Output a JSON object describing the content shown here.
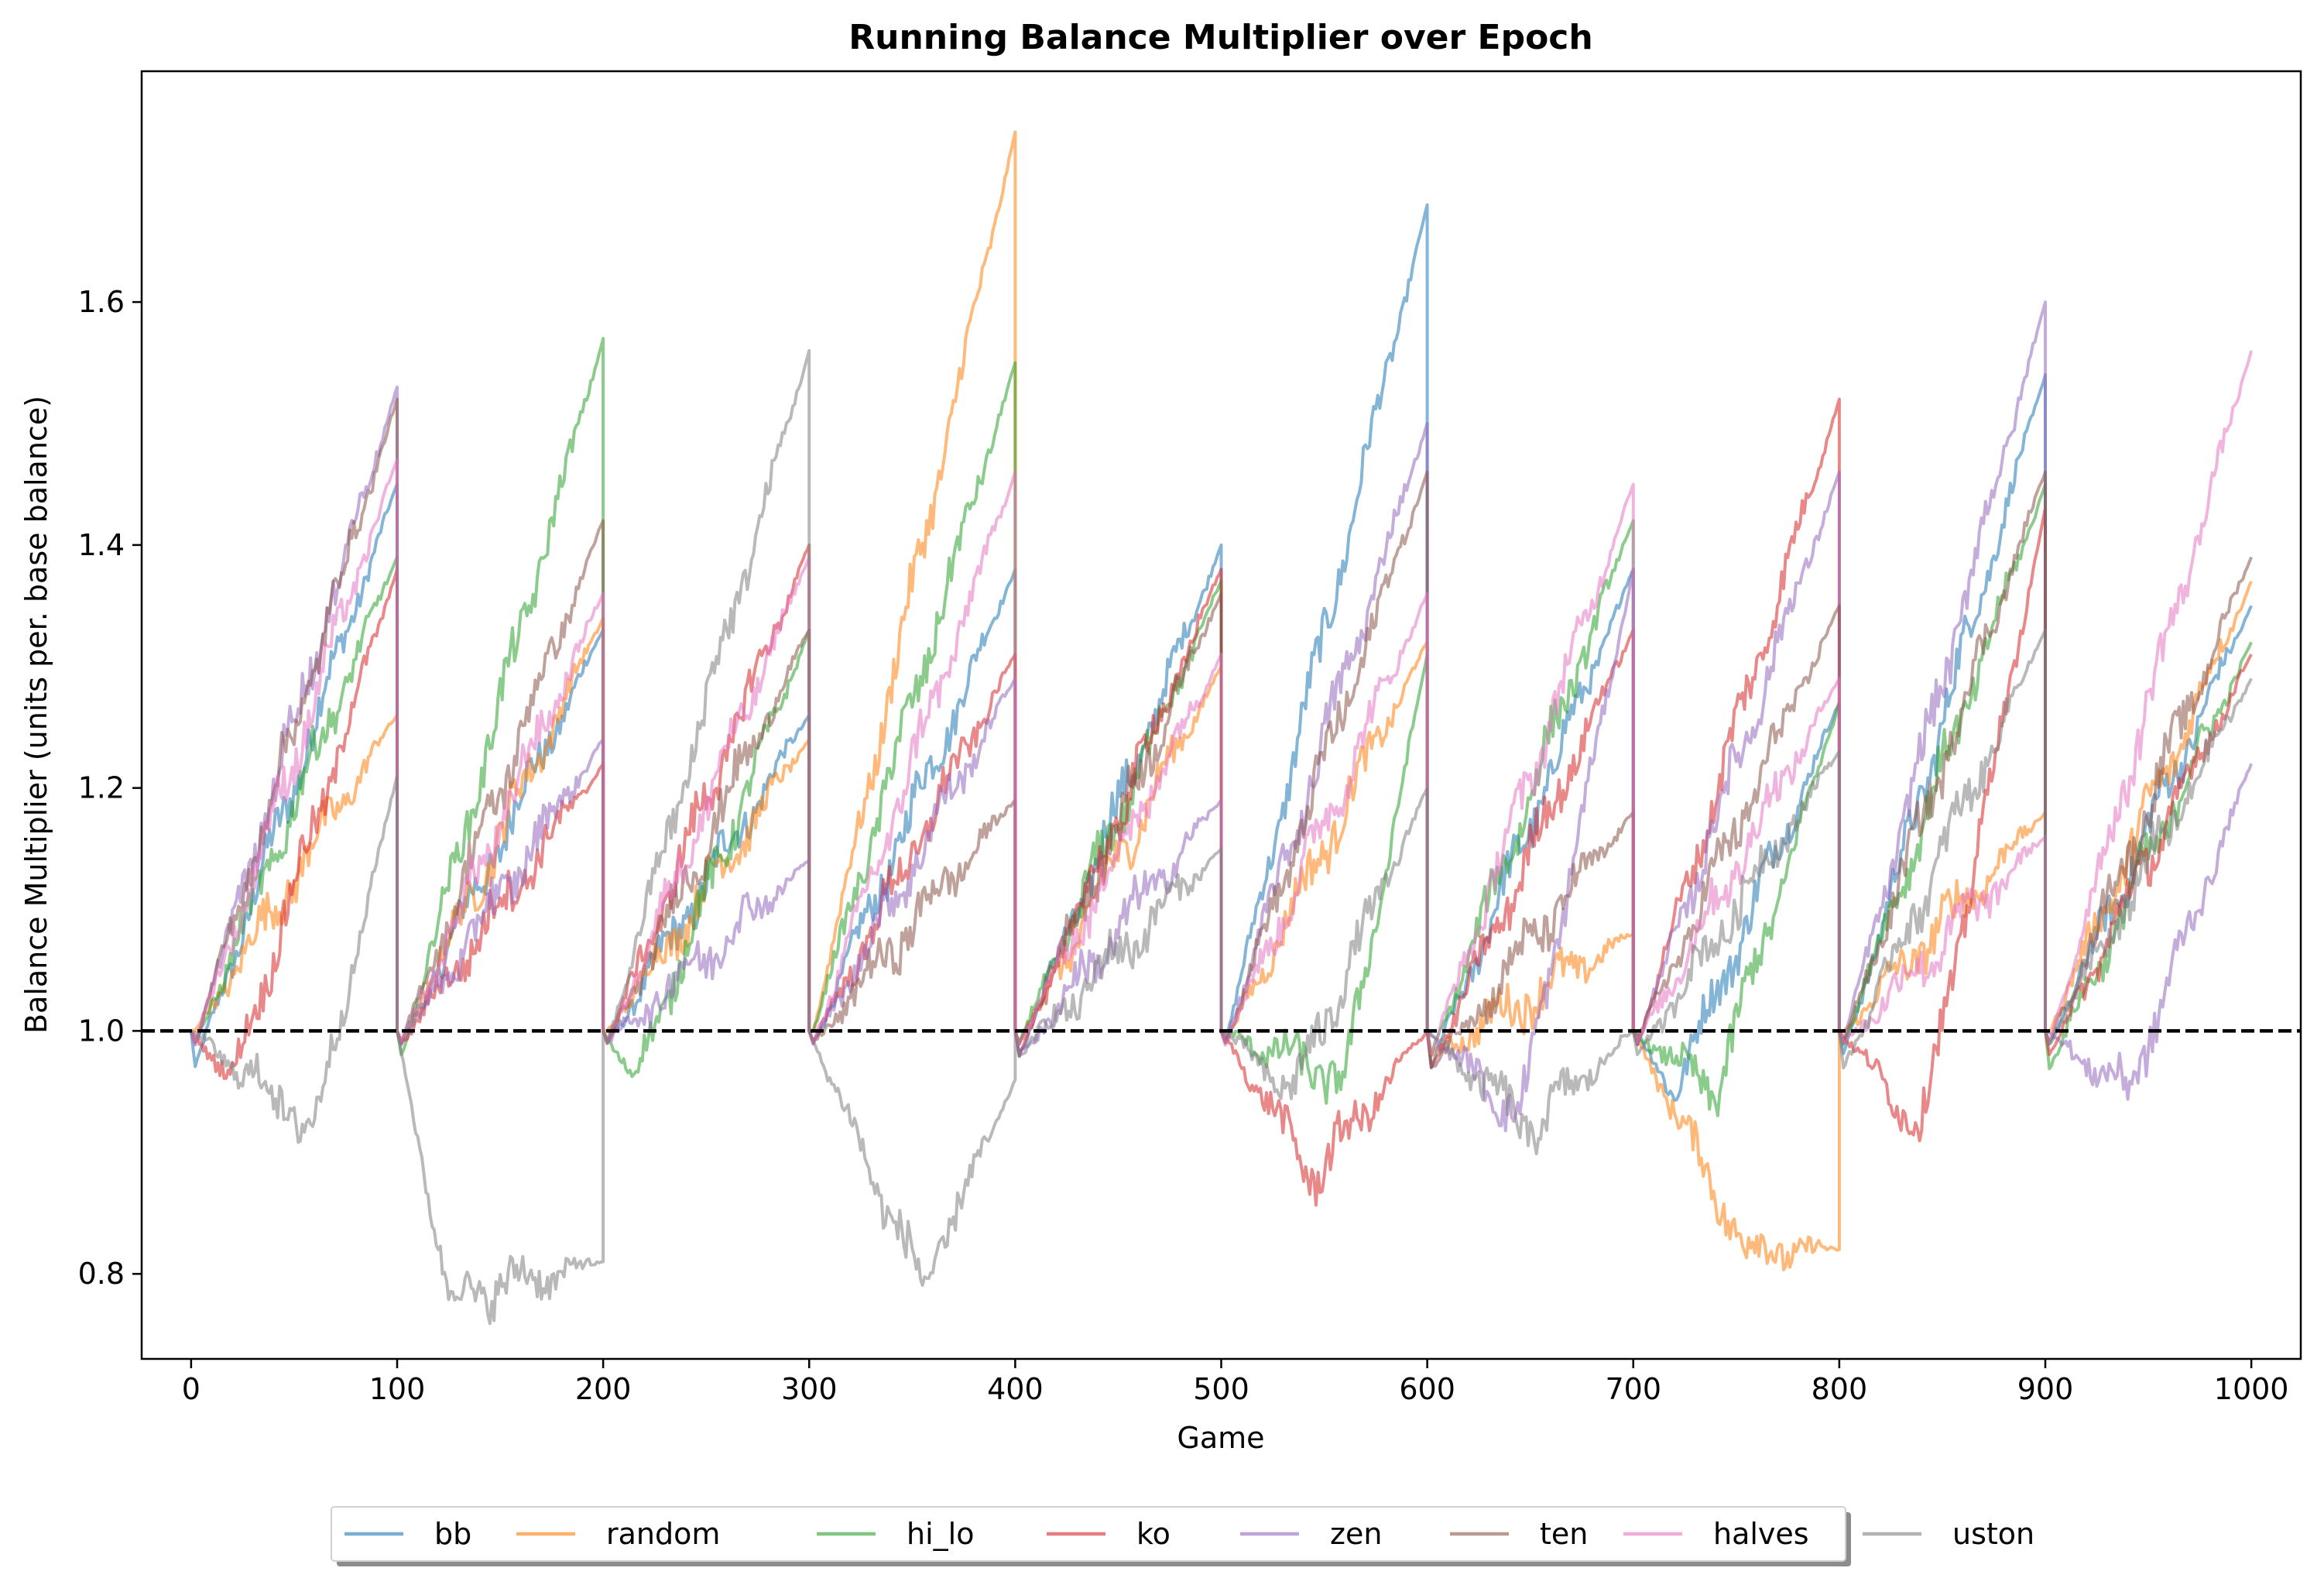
{
  "chart_data": {
    "type": "line",
    "title": "Running Balance Multiplier over Epoch",
    "xlabel": "Game",
    "ylabel": "Balance Multiplier (units per. base balance)",
    "xlim": [
      -24,
      1024
    ],
    "ylim": [
      0.73,
      1.79
    ],
    "xticks": [
      "0",
      "100",
      "200",
      "300",
      "400",
      "500",
      "600",
      "700",
      "800",
      "900",
      "1000"
    ],
    "yticks": [
      "0.8",
      "1.0",
      "1.2",
      "1.4",
      "1.6"
    ],
    "xtick_values": [
      0,
      100,
      200,
      300,
      400,
      500,
      600,
      700,
      800,
      900,
      1000
    ],
    "ytick_values": [
      0.8,
      1.0,
      1.2,
      1.4,
      1.6
    ],
    "reference_line": {
      "y": 1.0,
      "style": "dashed",
      "color": "#000000"
    },
    "legend_position": "bottom-center, below plot, single row with shadow",
    "epoch_length": 100,
    "series": [
      {
        "name": "bb",
        "color": "#1f77b4",
        "epoch_ends": [
          1.45,
          1.33,
          1.26,
          1.38,
          1.4,
          1.68,
          1.38,
          1.27,
          1.54,
          1.35
        ],
        "epoch_mins": [
          0.97,
          0.99,
          0.99,
          0.99,
          0.98,
          0.99,
          0.97,
          0.95,
          0.98,
          0.99
        ]
      },
      {
        "name": "random",
        "color": "#ff7f0e",
        "epoch_ends": [
          1.26,
          1.34,
          1.24,
          1.74,
          1.3,
          1.32,
          1.08,
          0.82,
          1.18,
          1.37
        ],
        "epoch_mins": [
          1.0,
          0.99,
          1.0,
          1.0,
          0.99,
          0.99,
          0.98,
          0.82,
          1.0,
          1.0
        ]
      },
      {
        "name": "hi_lo",
        "color": "#2ca02c",
        "epoch_ends": [
          1.39,
          1.57,
          1.33,
          1.55,
          1.37,
          1.31,
          1.42,
          1.27,
          1.45,
          1.32
        ],
        "epoch_mins": [
          0.99,
          0.98,
          0.96,
          1.0,
          0.99,
          0.96,
          0.98,
          0.95,
          0.99,
          0.97
        ]
      },
      {
        "name": "ko",
        "color": "#d62728",
        "epoch_ends": [
          1.38,
          1.22,
          1.4,
          1.31,
          1.38,
          1.0,
          1.33,
          1.52,
          1.43,
          1.31
        ],
        "epoch_mins": [
          0.96,
          0.99,
          0.99,
          0.99,
          0.98,
          0.88,
          0.97,
          0.99,
          0.92,
          0.98
        ]
      },
      {
        "name": "zen",
        "color": "#9467bd",
        "epoch_ends": [
          1.53,
          1.24,
          1.14,
          1.29,
          1.19,
          1.5,
          1.38,
          1.46,
          1.6,
          1.22
        ],
        "epoch_mins": [
          0.99,
          0.99,
          0.99,
          0.99,
          0.98,
          0.99,
          0.93,
          0.99,
          0.99,
          0.95
        ]
      },
      {
        "name": "ten",
        "color": "#8c564b",
        "epoch_ends": [
          1.52,
          1.42,
          1.33,
          1.19,
          1.36,
          1.46,
          1.18,
          1.35,
          1.46,
          1.39
        ],
        "epoch_mins": [
          0.99,
          0.99,
          0.99,
          0.99,
          0.99,
          0.99,
          0.97,
          0.99,
          0.99,
          0.99
        ]
      },
      {
        "name": "halves",
        "color": "#e377c2",
        "epoch_ends": [
          1.47,
          1.36,
          1.39,
          1.46,
          1.31,
          1.36,
          1.45,
          1.29,
          1.16,
          1.56
        ],
        "epoch_mins": [
          0.99,
          0.99,
          0.99,
          0.99,
          0.99,
          0.99,
          0.98,
          0.99,
          0.99,
          0.99
        ]
      },
      {
        "name": "uston",
        "color": "#7f7f7f",
        "epoch_ends": [
          1.21,
          0.81,
          1.56,
          0.96,
          1.15,
          1.2,
          1.0,
          1.23,
          1.33,
          1.29
        ],
        "epoch_mins": [
          0.92,
          0.78,
          0.99,
          0.79,
          0.98,
          0.95,
          0.92,
          0.98,
          0.97,
          0.99
        ]
      }
    ]
  }
}
